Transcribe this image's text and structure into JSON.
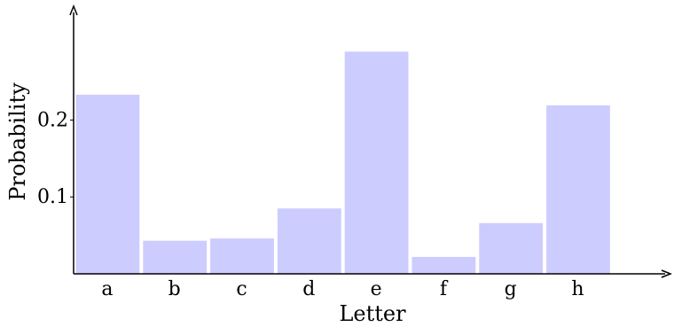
{
  "chart_data": {
    "type": "bar",
    "title": "",
    "xlabel": "Letter",
    "ylabel": "Probability",
    "categories": [
      "a",
      "b",
      "c",
      "d",
      "e",
      "f",
      "g",
      "h"
    ],
    "values": [
      0.233,
      0.043,
      0.046,
      0.085,
      0.289,
      0.022,
      0.066,
      0.219
    ],
    "yticks": [
      0.1,
      0.2
    ],
    "ytick_labels": [
      "0.1",
      "0.2"
    ],
    "ylim": [
      0,
      0.34
    ],
    "grid": false,
    "legend": false,
    "colors": {
      "bar": "#ccccff",
      "axis": "#000000"
    }
  }
}
